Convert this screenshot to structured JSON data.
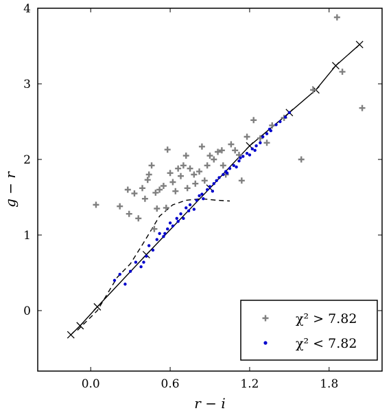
{
  "chart_data": {
    "type": "scatter",
    "xlabel": "r − i",
    "ylabel": "g − r",
    "xlim": [
      -0.4,
      2.2
    ],
    "ylim": [
      -0.8,
      4.0
    ],
    "x_ticks": [
      {
        "value": 0.0,
        "label": "0.0"
      },
      {
        "value": 0.6,
        "label": "0.6"
      },
      {
        "value": 1.2,
        "label": "1.2"
      },
      {
        "value": 1.8,
        "label": "1.8"
      }
    ],
    "y_ticks": [
      {
        "value": 0,
        "label": "0"
      },
      {
        "value": 1,
        "label": "1"
      },
      {
        "value": 2,
        "label": "2"
      },
      {
        "value": 3,
        "label": "3"
      },
      {
        "value": 4,
        "label": "4"
      }
    ],
    "legend": {
      "position": "bottom-right",
      "entries": [
        {
          "label": "χ² > 7.82",
          "marker": "plus",
          "color": "#808080"
        },
        {
          "label": "χ² < 7.82",
          "marker": "dot",
          "color": "#0000cc"
        }
      ]
    },
    "series": [
      {
        "name": "χ² > 7.82",
        "marker": "plus",
        "color": "#808080",
        "points": [
          [
            0.04,
            1.4
          ],
          [
            0.22,
            1.38
          ],
          [
            0.29,
            1.28
          ],
          [
            0.33,
            1.55
          ],
          [
            0.39,
            1.62
          ],
          [
            0.41,
            1.48
          ],
          [
            0.43,
            1.73
          ],
          [
            0.44,
            1.8
          ],
          [
            0.46,
            1.92
          ],
          [
            0.49,
            1.56
          ],
          [
            0.5,
            1.35
          ],
          [
            0.52,
            1.6
          ],
          [
            0.55,
            1.65
          ],
          [
            0.58,
            2.13
          ],
          [
            0.6,
            1.82
          ],
          [
            0.62,
            1.7
          ],
          [
            0.64,
            1.58
          ],
          [
            0.66,
            1.88
          ],
          [
            0.68,
            1.78
          ],
          [
            0.7,
            1.92
          ],
          [
            0.72,
            2.05
          ],
          [
            0.73,
            1.62
          ],
          [
            0.75,
            1.88
          ],
          [
            0.78,
            1.8
          ],
          [
            0.82,
            1.84
          ],
          [
            0.84,
            2.17
          ],
          [
            0.86,
            1.72
          ],
          [
            0.88,
            1.92
          ],
          [
            0.9,
            2.05
          ],
          [
            0.93,
            2.0
          ],
          [
            0.96,
            2.1
          ],
          [
            0.99,
            2.12
          ],
          [
            1.02,
            1.8
          ],
          [
            1.06,
            2.2
          ],
          [
            1.09,
            2.12
          ],
          [
            1.14,
            1.72
          ],
          [
            1.18,
            2.3
          ],
          [
            1.23,
            2.52
          ],
          [
            1.28,
            2.28
          ],
          [
            1.33,
            2.22
          ],
          [
            1.37,
            2.45
          ],
          [
            1.46,
            2.55
          ],
          [
            1.59,
            2.0
          ],
          [
            1.68,
            2.92
          ],
          [
            1.86,
            3.88
          ],
          [
            1.9,
            3.16
          ],
          [
            2.05,
            2.68
          ],
          [
            0.28,
            1.6
          ],
          [
            0.36,
            1.22
          ],
          [
            0.48,
            1.08
          ],
          [
            0.57,
            1.36
          ],
          [
            0.79,
            1.68
          ],
          [
            1.12,
            2.06
          ],
          [
            1.0,
            1.92
          ]
        ]
      },
      {
        "name": "χ² < 7.82",
        "marker": "dot",
        "color": "#0000cc",
        "points": [
          [
            0.18,
            0.4
          ],
          [
            0.22,
            0.48
          ],
          [
            0.26,
            0.35
          ],
          [
            0.3,
            0.52
          ],
          [
            0.34,
            0.64
          ],
          [
            0.38,
            0.58
          ],
          [
            0.42,
            0.72
          ],
          [
            0.44,
            0.86
          ],
          [
            0.47,
            0.8
          ],
          [
            0.5,
            0.94
          ],
          [
            0.52,
            1.02
          ],
          [
            0.55,
            0.98
          ],
          [
            0.58,
            1.08
          ],
          [
            0.6,
            1.16
          ],
          [
            0.62,
            1.12
          ],
          [
            0.65,
            1.22
          ],
          [
            0.68,
            1.28
          ],
          [
            0.7,
            1.22
          ],
          [
            0.72,
            1.36
          ],
          [
            0.75,
            1.4
          ],
          [
            0.78,
            1.34
          ],
          [
            0.8,
            1.46
          ],
          [
            0.82,
            1.52
          ],
          [
            0.85,
            1.48
          ],
          [
            0.88,
            1.6
          ],
          [
            0.9,
            1.64
          ],
          [
            0.92,
            1.58
          ],
          [
            0.95,
            1.72
          ],
          [
            0.97,
            1.76
          ],
          [
            1.0,
            1.8
          ],
          [
            1.02,
            1.84
          ],
          [
            1.05,
            1.88
          ],
          [
            1.08,
            1.92
          ],
          [
            1.1,
            1.9
          ],
          [
            1.12,
            1.98
          ],
          [
            1.15,
            2.04
          ],
          [
            1.18,
            2.08
          ],
          [
            1.2,
            2.06
          ],
          [
            1.22,
            2.14
          ],
          [
            1.25,
            2.18
          ],
          [
            1.28,
            2.22
          ],
          [
            1.3,
            2.3
          ],
          [
            1.33,
            2.34
          ],
          [
            1.36,
            2.38
          ],
          [
            1.4,
            2.46
          ],
          [
            1.43,
            2.5
          ],
          [
            1.47,
            2.56
          ],
          [
            1.5,
            2.62
          ],
          [
            0.4,
            0.64
          ],
          [
            0.56,
            1.02
          ],
          [
            0.66,
            1.18
          ],
          [
            0.74,
            1.32
          ],
          [
            0.84,
            1.54
          ],
          [
            0.93,
            1.68
          ],
          [
            1.03,
            1.82
          ],
          [
            1.13,
            2.02
          ],
          [
            1.24,
            2.12
          ],
          [
            1.35,
            2.4
          ]
        ]
      }
    ],
    "reference_lines": [
      {
        "style": "solid",
        "marker": "x",
        "points": [
          [
            -0.15,
            -0.32
          ],
          [
            -0.08,
            -0.2
          ],
          [
            0.05,
            0.05
          ],
          [
            0.42,
            0.74
          ],
          [
            0.9,
            1.62
          ],
          [
            1.2,
            2.18
          ],
          [
            1.5,
            2.62
          ],
          [
            1.7,
            2.92
          ],
          [
            1.85,
            3.24
          ],
          [
            2.03,
            3.52
          ]
        ]
      },
      {
        "style": "dashed",
        "points": [
          [
            -0.1,
            -0.26
          ],
          [
            0.05,
            0.0
          ],
          [
            0.2,
            0.44
          ],
          [
            0.3,
            0.62
          ],
          [
            0.4,
            0.9
          ],
          [
            0.52,
            1.25
          ],
          [
            0.62,
            1.4
          ],
          [
            0.72,
            1.46
          ],
          [
            0.84,
            1.48
          ],
          [
            0.95,
            1.46
          ],
          [
            1.05,
            1.45
          ]
        ]
      }
    ]
  }
}
